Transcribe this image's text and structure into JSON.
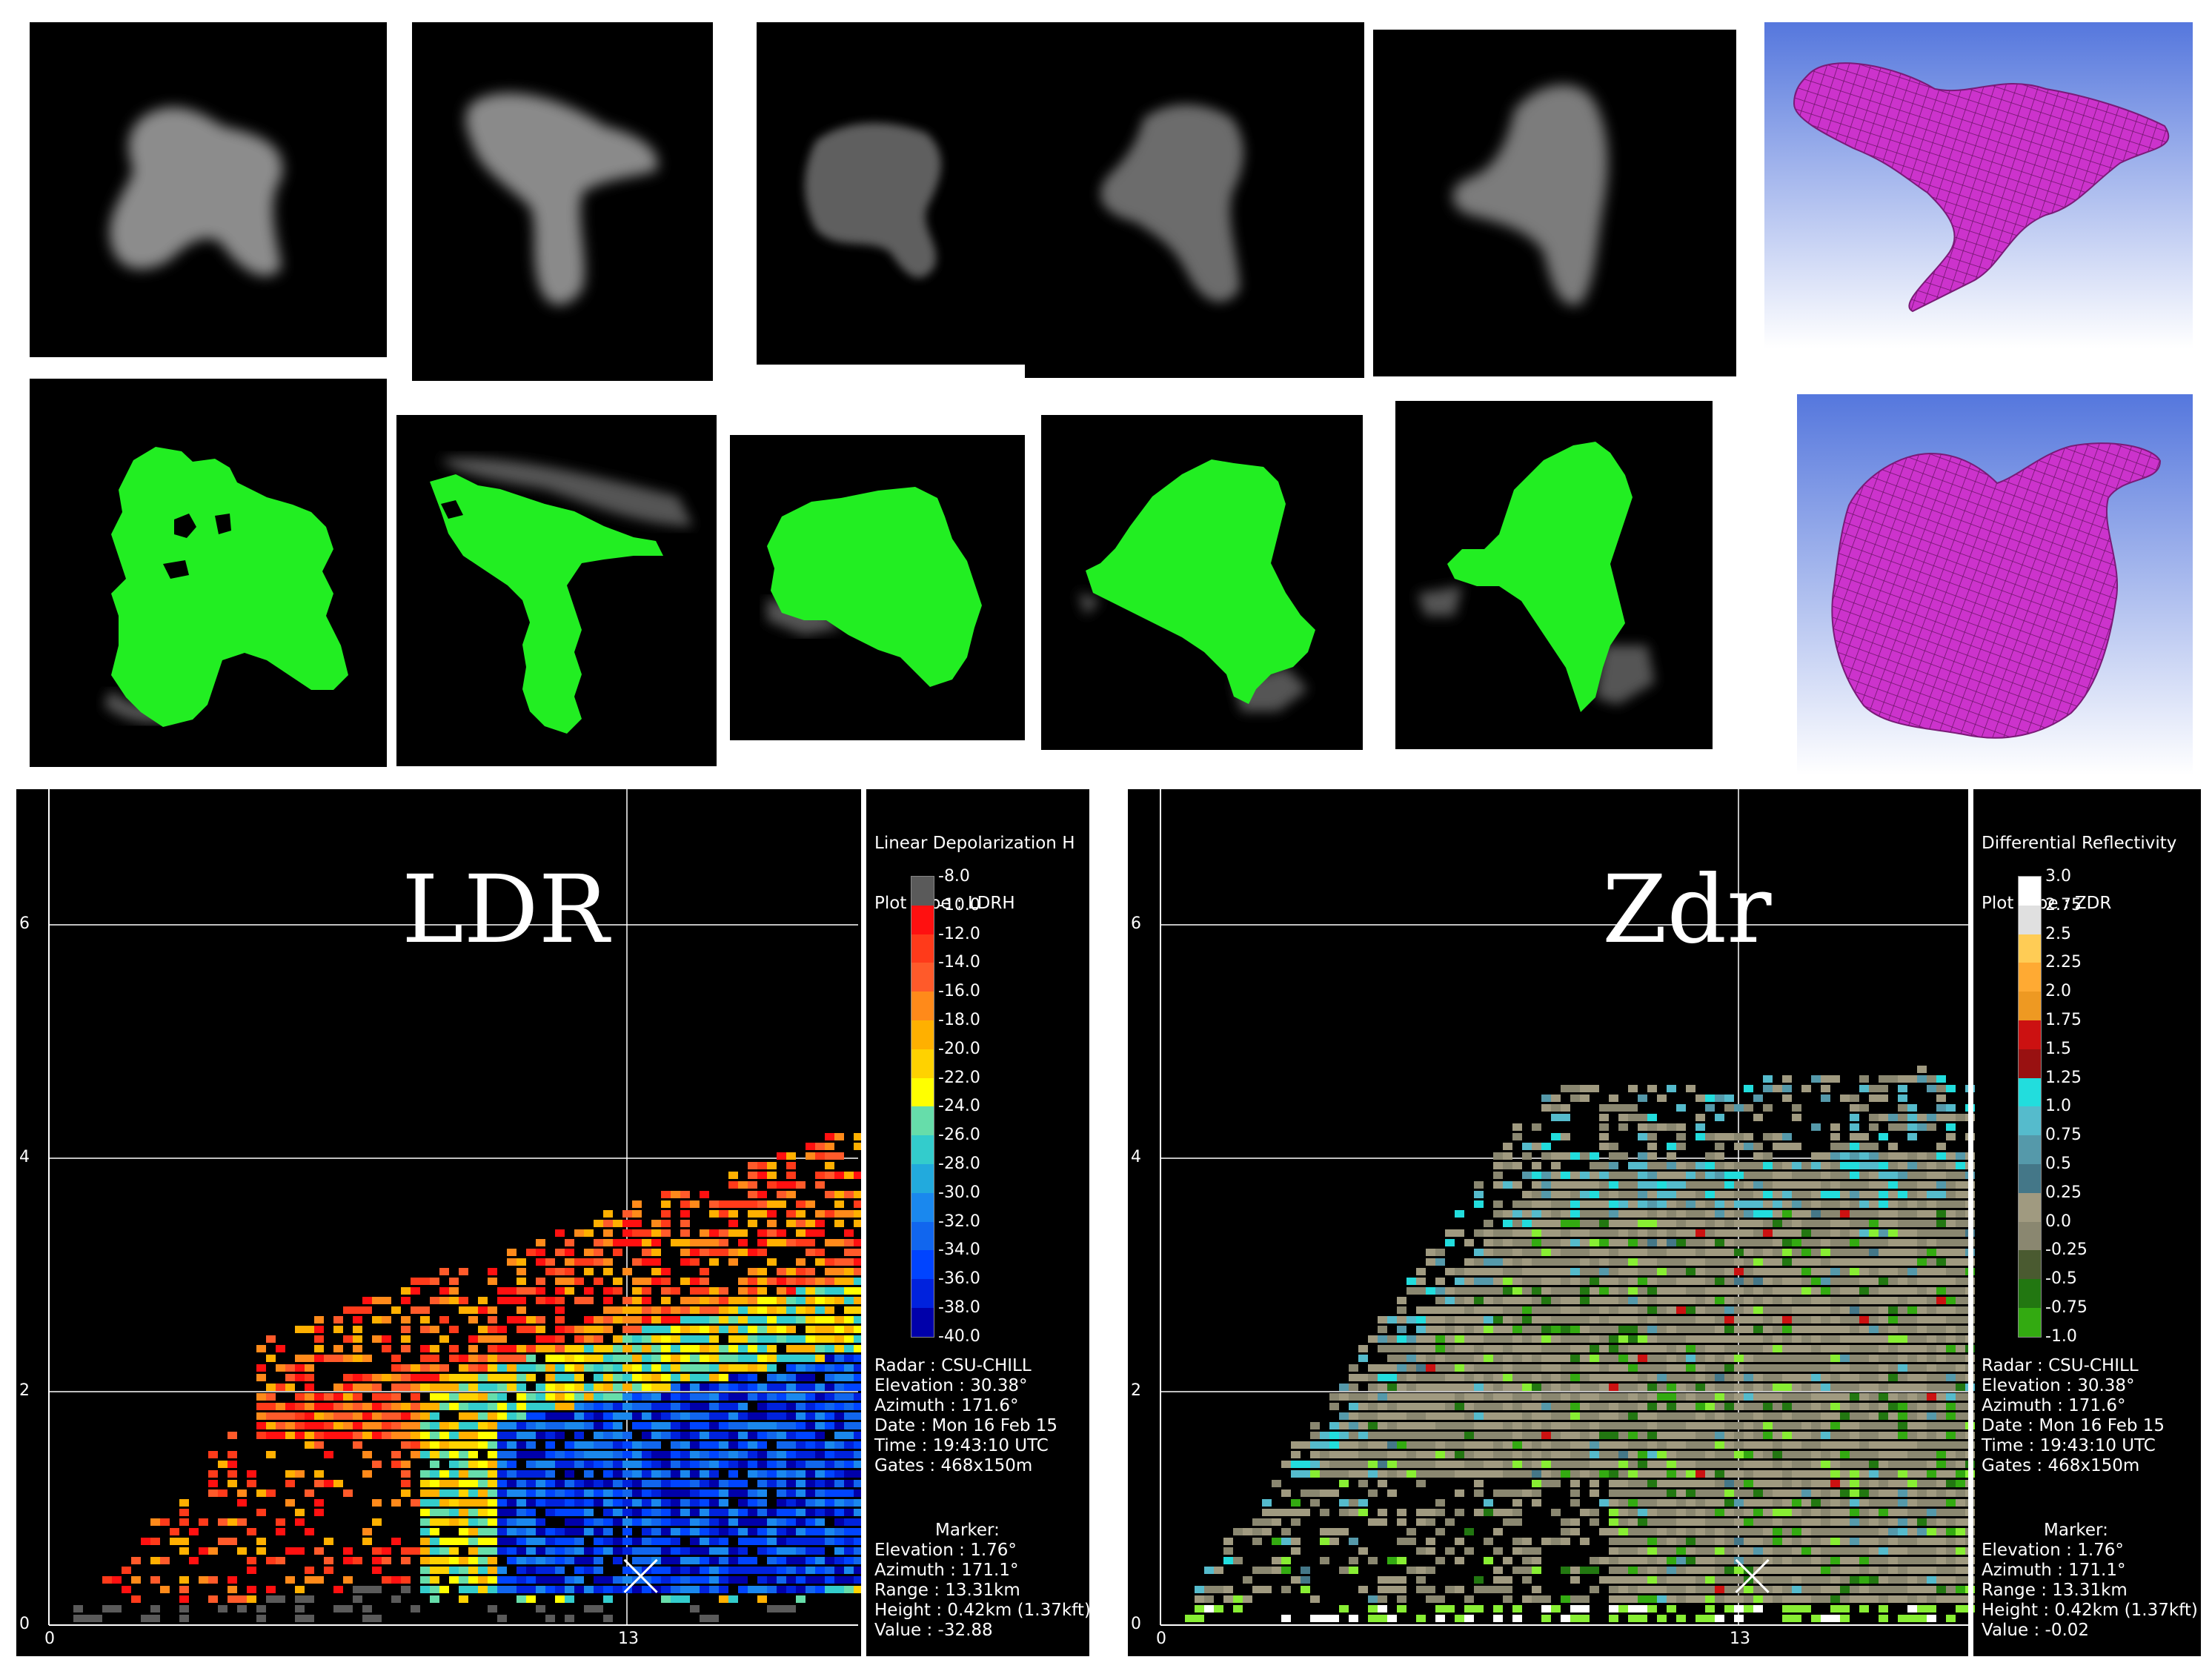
{
  "chart_data": [
    {
      "type": "heatmap",
      "title": "LDR",
      "product": "Linear Depolarization H",
      "plot_type": "Plot Type : LDRH",
      "legend_values": [
        "-8.0",
        "-10.0",
        "-12.0",
        "-14.0",
        "-16.0",
        "-18.0",
        "-20.0",
        "-22.0",
        "-24.0",
        "-26.0",
        "-28.0",
        "-30.0",
        "-32.0",
        "-34.0",
        "-36.0",
        "-38.0",
        "-40.0"
      ],
      "legend_colors": [
        "#5a5a5a",
        "#ff1010",
        "#ff3a1a",
        "#ff5a2a",
        "#ff8a1a",
        "#ffb000",
        "#ffd200",
        "#ffff00",
        "#66ddaa",
        "#33cccc",
        "#22aadd",
        "#1a88ee",
        "#1166ee",
        "#0044ff",
        "#0022dd",
        "#0000aa"
      ],
      "x_ticks": [
        "0",
        "13"
      ],
      "y_ticks": [
        "0",
        "2",
        "4",
        "6"
      ],
      "radar": [
        "Radar : CSU-CHILL",
        "Elevation : 30.38°",
        "Azimuth : 171.6°",
        "Date : Mon 16 Feb 15",
        "Time : 19:43:10 UTC",
        "Gates : 468x150m"
      ],
      "marker_title": "Marker:",
      "marker": [
        "Elevation : 1.76°",
        "Azimuth : 171.1°",
        "Range : 13.31km",
        "Height : 0.42km (1.37kft)",
        "Value : -32.88"
      ],
      "marker_pos": [
        13.31,
        0.42
      ]
    },
    {
      "type": "heatmap",
      "title": "Zdr",
      "product": "Differential Reflectivity",
      "plot_type": "Plot Type : ZDR",
      "legend_values": [
        "3.0",
        "2.75",
        "2.5",
        "2.25",
        "2.0",
        "1.75",
        "1.5",
        "1.25",
        "1.0",
        "0.75",
        "0.5",
        "0.25",
        "0.0",
        "-0.25",
        "-0.5",
        "-0.75",
        "-1.0"
      ],
      "legend_colors": [
        "#ffffff",
        "#e0e0e0",
        "#ffcc55",
        "#ffaa33",
        "#ee9922",
        "#cc1111",
        "#991111",
        "#22dddd",
        "#55bbcc",
        "#5599aa",
        "#447788",
        "#a09a80",
        "#8a8770",
        "#4a5a30",
        "#227711",
        "#33aa11",
        "#88ee33"
      ],
      "x_ticks": [
        "0",
        "13"
      ],
      "y_ticks": [
        "0",
        "2",
        "4",
        "6"
      ],
      "radar": [
        "Radar : CSU-CHILL",
        "Elevation : 30.38°",
        "Azimuth : 171.6°",
        "Date : Mon 16 Feb 15",
        "Time : 19:43:10 UTC",
        "Gates : 468x150m"
      ],
      "marker_title": "Marker:",
      "marker": [
        "Elevation : 1.76°",
        "Azimuth : 171.1°",
        "Range : 13.31km",
        "Height : 0.42km (1.37kft)",
        "Value : -0.02"
      ],
      "marker_pos": [
        13.31,
        0.42
      ]
    }
  ],
  "colors": {
    "grayscale_blob": "#9a9a9a",
    "segmentation": "#22ee22",
    "mesh": "#cc33cc",
    "mesh_bg_top": "#5577dd",
    "mesh_bg_bottom": "#ffffff"
  },
  "top_panels": [
    "grayscale-1",
    "grayscale-2",
    "grayscale-3",
    "grayscale-4",
    "grayscale-5"
  ],
  "mid_panels": [
    "segmented-1",
    "segmented-2",
    "segmented-3",
    "segmented-4",
    "segmented-5"
  ]
}
